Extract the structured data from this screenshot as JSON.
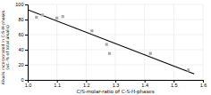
{
  "chart_data": {
    "type": "scatter",
    "xlabel": "C/S-molar-ratio of C-S-H-phases",
    "ylabel": "Alkalis incorporated in C-S-H-phases\n(wt.-% of total alkalis)",
    "xlim": [
      1.0,
      1.6
    ],
    "ylim": [
      0,
      100
    ],
    "xticks": [
      {
        "value": 1.0,
        "label": "1.0"
      },
      1.1,
      1.2,
      1.3,
      1.4,
      1.5,
      1.6
    ],
    "yticks": [
      0,
      20,
      40,
      60,
      80,
      100
    ],
    "grid": true,
    "series": [
      {
        "type": "line",
        "color": "#000000",
        "x": [
          1.0,
          1.57
        ],
        "values": [
          93,
          8
        ]
      },
      {
        "type": "scatter",
        "color": "#aaaaaa",
        "marker": "square",
        "x": [
          1.03,
          1.05,
          1.1,
          1.12,
          1.22,
          1.27,
          1.28,
          1.42,
          1.55
        ],
        "values": [
          83,
          86,
          82,
          84,
          65,
          47,
          35,
          35,
          13
        ]
      }
    ]
  }
}
